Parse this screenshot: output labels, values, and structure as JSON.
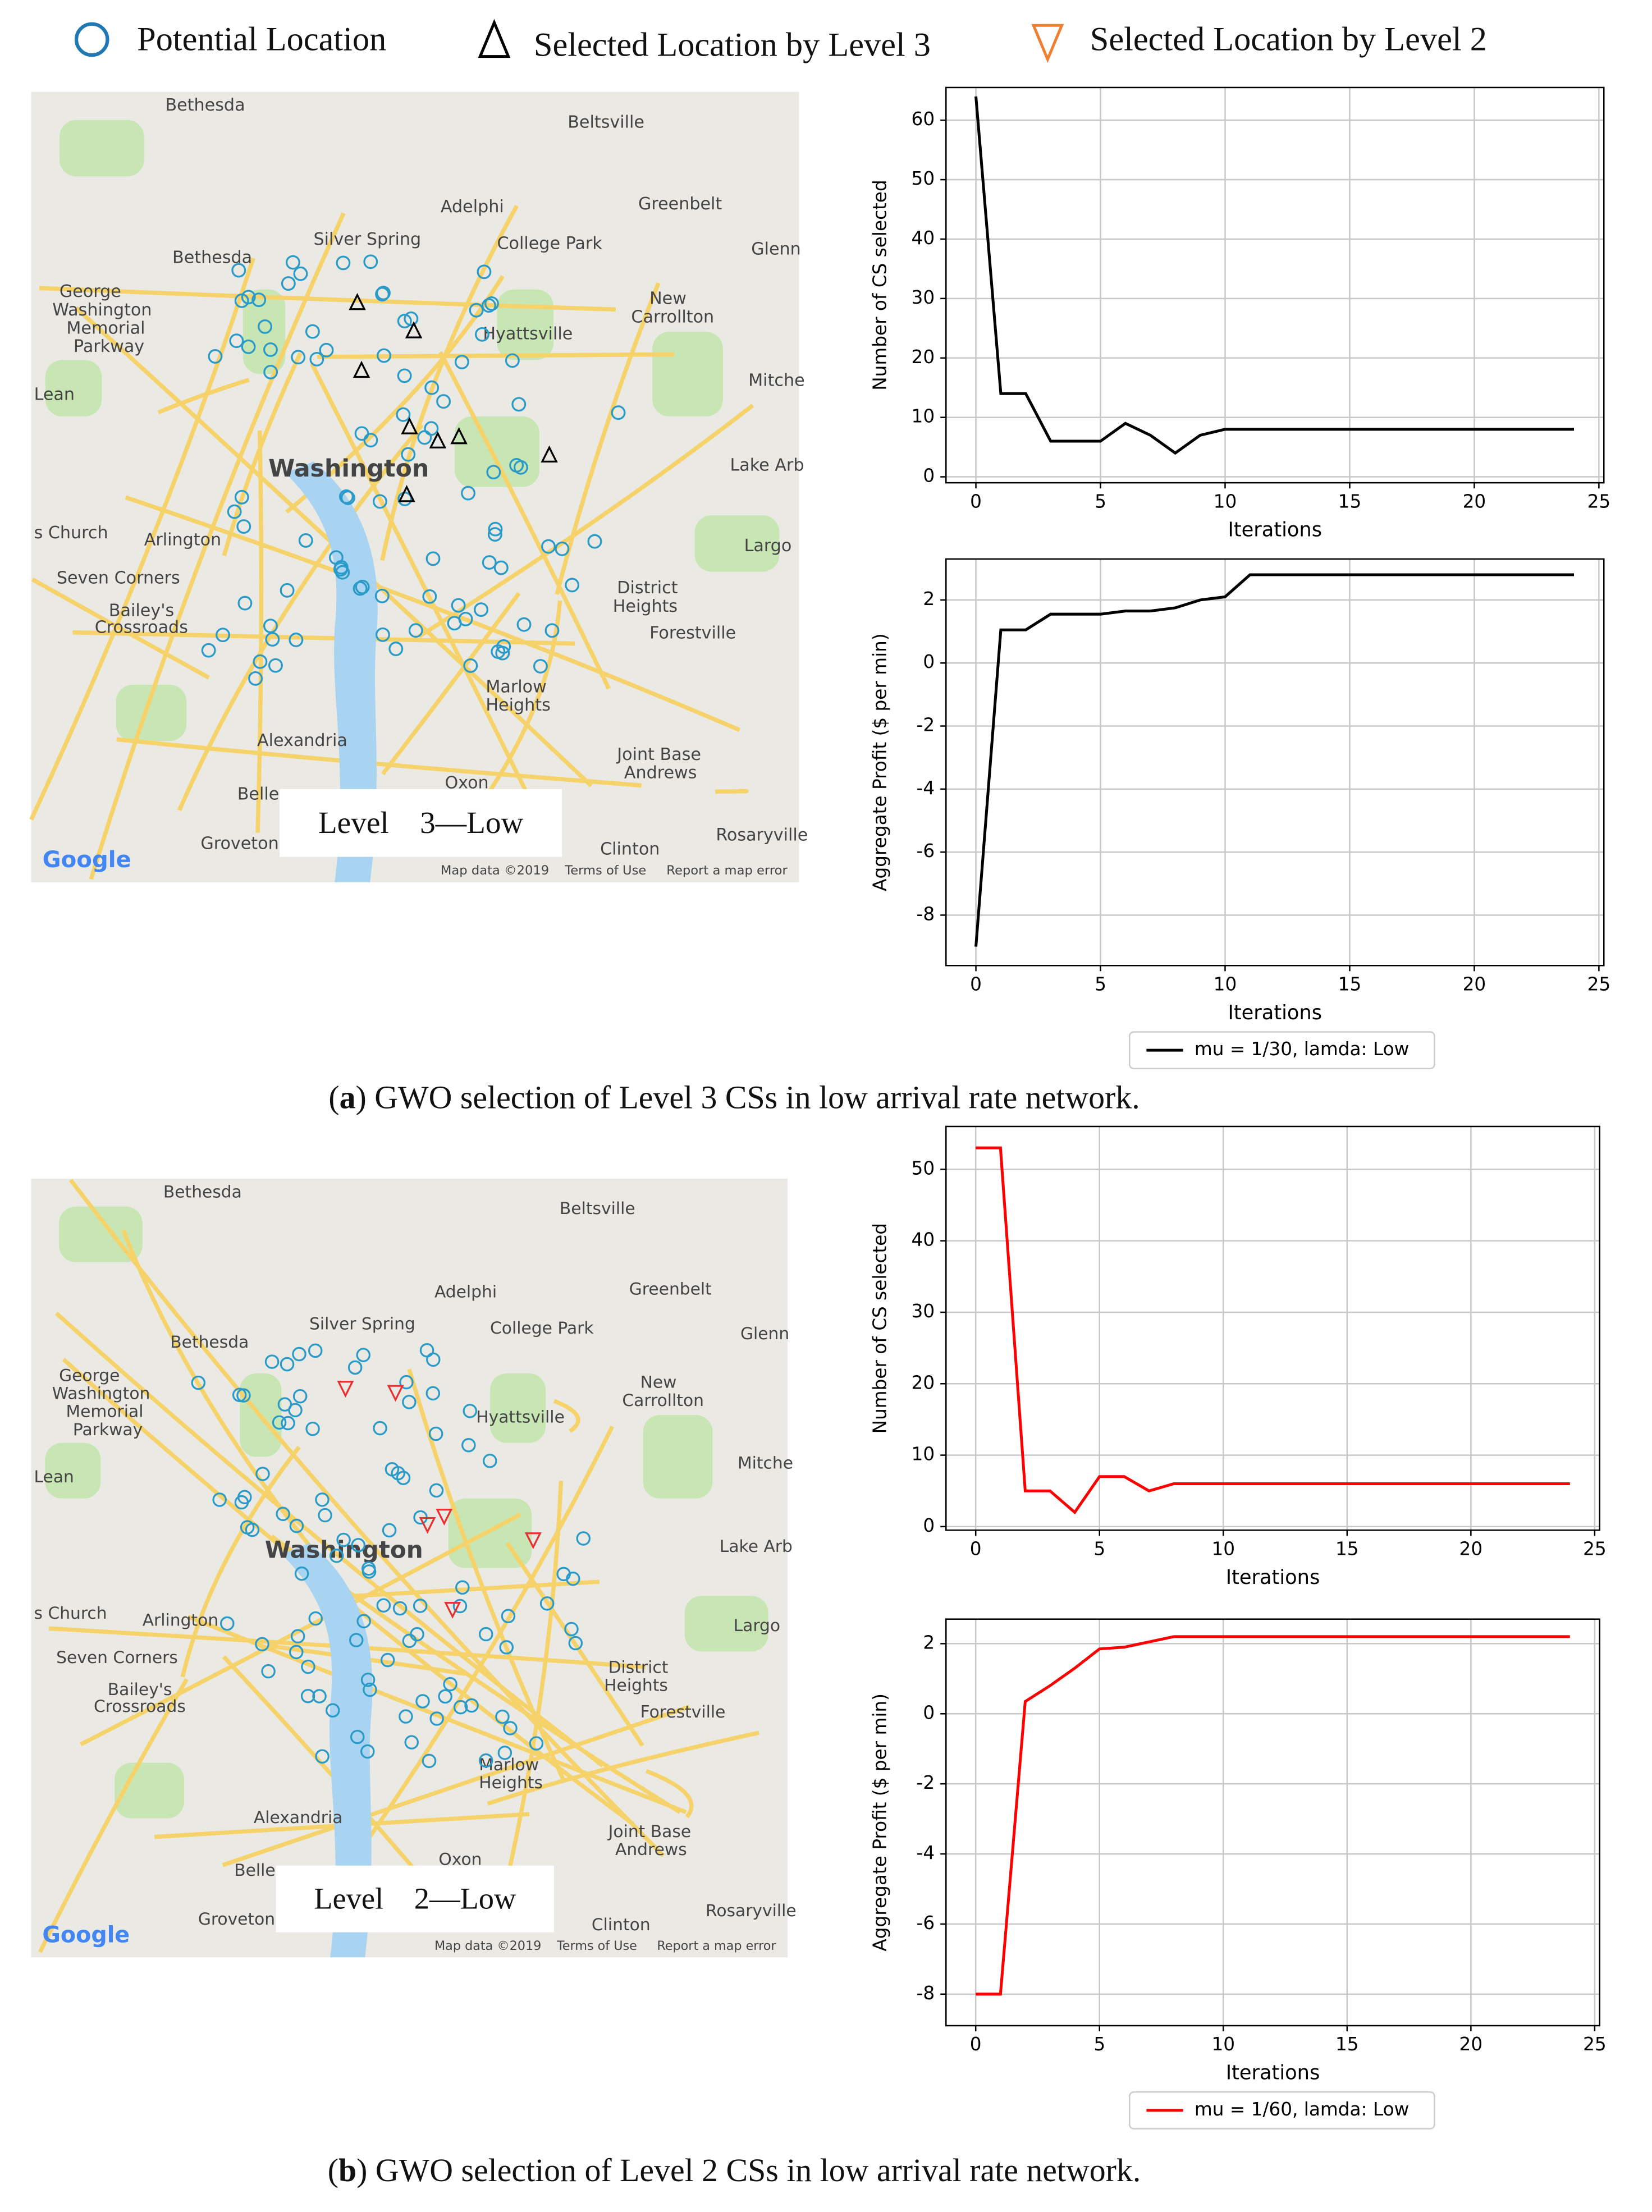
{
  "legend": [
    {
      "label": "Potential Location",
      "color": "#1f77b4"
    },
    {
      "label": "Selected Location by Level 3",
      "color": "#000000"
    },
    {
      "label": "Selected Location by Level 2",
      "color": "#f08030"
    }
  ],
  "map_labels": [
    "Bethesda",
    "Beltsville",
    "Adelphi",
    "Greenbelt",
    "Silver Spring",
    "College Park",
    "Glenn",
    "Bethesda",
    "George",
    "Washington",
    "Memorial",
    "Parkway",
    "Hyattsville",
    "New",
    "Carrollton",
    "Mitche",
    "Lean",
    "Lake Arb",
    "Washington",
    "Arlington",
    "s Church",
    "Largo",
    "Seven Corners",
    "Bailey's",
    "Crossroads",
    "District",
    "Heights",
    "Forestville",
    "Marlow",
    "Heights",
    "Alexandria",
    "Joint Base",
    "Andrews",
    "Oxon",
    "Belle",
    "Groveton",
    "Clinton",
    "Rosaryville",
    "Map data ©2019",
    "Terms of Use",
    "Report a map error",
    "Google"
  ],
  "maps": [
    {
      "level_label": "Level    3—Low"
    },
    {
      "level_label": "Level    2—Low"
    }
  ],
  "captions": [
    [
      "(",
      "a",
      ") GWO selection of Level 3 CSs in low arrival rate network."
    ],
    [
      "(",
      "b",
      ") GWO selection of Level 2 CSs in low arrival rate network."
    ]
  ],
  "chart_data": [
    {
      "type": "line",
      "x": [
        0,
        1,
        2,
        3,
        4,
        5,
        6,
        7,
        8,
        9,
        10,
        11,
        12,
        13,
        14,
        15,
        16,
        17,
        18,
        19,
        20,
        21,
        22,
        23,
        24
      ],
      "series": [
        {
          "name": "mu = 1/30, lamda: Low",
          "color": "#000000",
          "values": [
            64,
            14,
            14,
            6,
            6,
            6,
            9,
            7,
            4,
            7,
            8,
            8,
            8,
            8,
            8,
            8,
            8,
            8,
            8,
            8,
            8,
            8,
            8,
            8,
            8
          ]
        }
      ],
      "xlabel": "Iterations",
      "ylabel": "Number of CS selected",
      "xlim": [
        -1.2,
        25.2
      ],
      "ylim": [
        -1,
        65.5
      ],
      "xticks": [
        0,
        5,
        10,
        15,
        20,
        25
      ],
      "yticks": [
        0,
        10,
        20,
        30,
        40,
        50,
        60
      ],
      "grid": true,
      "legend": false
    },
    {
      "type": "line",
      "x": [
        0,
        1,
        2,
        3,
        4,
        5,
        6,
        7,
        8,
        9,
        10,
        11,
        12,
        13,
        14,
        15,
        16,
        17,
        18,
        19,
        20,
        21,
        22,
        23,
        24
      ],
      "series": [
        {
          "name": "mu = 1/30, lamda: Low",
          "color": "#000000",
          "values": [
            -9,
            1.05,
            1.05,
            1.55,
            1.55,
            1.55,
            1.65,
            1.65,
            1.75,
            2,
            2.1,
            2.8,
            2.8,
            2.8,
            2.8,
            2.8,
            2.8,
            2.8,
            2.8,
            2.8,
            2.8,
            2.8,
            2.8,
            2.8,
            2.8
          ]
        }
      ],
      "xlabel": "Iterations",
      "ylabel": "Aggregate Profit ($ per min)",
      "xlim": [
        -1.2,
        25.2
      ],
      "ylim": [
        -9.6,
        3.3
      ],
      "xticks": [
        0,
        5,
        10,
        15,
        20,
        25
      ],
      "yticks": [
        -8,
        -6,
        -4,
        -2,
        0,
        2
      ],
      "grid": true,
      "legend": true
    },
    {
      "type": "line",
      "x": [
        0,
        1,
        2,
        3,
        4,
        5,
        6,
        7,
        8,
        9,
        10,
        11,
        12,
        13,
        14,
        15,
        16,
        17,
        18,
        19,
        20,
        21,
        22,
        23,
        24
      ],
      "series": [
        {
          "name": "mu = 1/60, lamda: Low",
          "color": "#ff0000",
          "values": [
            53,
            53,
            5,
            5,
            2,
            7,
            7,
            5,
            6,
            6,
            6,
            6,
            6,
            6,
            6,
            6,
            6,
            6,
            6,
            6,
            6,
            6,
            6,
            6,
            6
          ]
        }
      ],
      "xlabel": "Iterations",
      "ylabel": "Number of CS selected",
      "xlim": [
        -1.2,
        25.2
      ],
      "ylim": [
        -0.5,
        56
      ],
      "xticks": [
        0,
        5,
        10,
        15,
        20,
        25
      ],
      "yticks": [
        0,
        10,
        20,
        30,
        40,
        50
      ],
      "grid": true,
      "legend": false
    },
    {
      "type": "line",
      "x": [
        0,
        1,
        2,
        3,
        4,
        5,
        6,
        7,
        8,
        9,
        10,
        11,
        12,
        13,
        14,
        15,
        16,
        17,
        18,
        19,
        20,
        21,
        22,
        23,
        24
      ],
      "series": [
        {
          "name": "mu = 1/60, lamda: Low",
          "color": "#ff0000",
          "values": [
            -8,
            -8,
            0.35,
            0.8,
            1.3,
            1.85,
            1.9,
            2.05,
            2.2,
            2.2,
            2.2,
            2.2,
            2.2,
            2.2,
            2.2,
            2.2,
            2.2,
            2.2,
            2.2,
            2.2,
            2.2,
            2.2,
            2.2,
            2.2,
            2.2
          ]
        }
      ],
      "xlabel": "Iterations",
      "ylabel": "Aggregate Profit ($ per min)",
      "xlim": [
        -1.2,
        25.2
      ],
      "ylim": [
        -8.9,
        2.7
      ],
      "xticks": [
        0,
        5,
        10,
        15,
        20,
        25
      ],
      "yticks": [
        -8,
        -6,
        -4,
        -2,
        0,
        2
      ],
      "grid": true,
      "legend": true
    }
  ]
}
